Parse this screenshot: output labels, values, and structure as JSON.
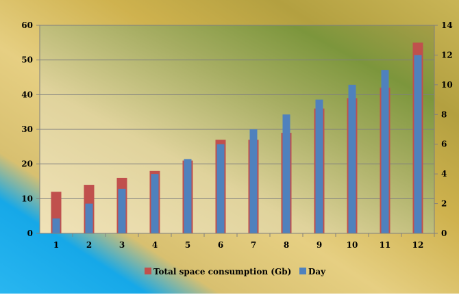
{
  "chart_data": {
    "type": "bar",
    "title": "",
    "xlabel": "",
    "ylabel": "",
    "categories": [
      "1",
      "2",
      "3",
      "4",
      "5",
      "6",
      "7",
      "8",
      "9",
      "10",
      "11",
      "12"
    ],
    "series": [
      {
        "name": "Total space consumption (Gb)",
        "axis": "left",
        "color": "#c0504d",
        "values": [
          12,
          14,
          16,
          18,
          21,
          27,
          27,
          29,
          36,
          39,
          42,
          55
        ]
      },
      {
        "name": "Day",
        "axis": "right",
        "color": "#4f81bd",
        "values": [
          1,
          2,
          3,
          4,
          5,
          6,
          7,
          8,
          9,
          10,
          11,
          12
        ]
      }
    ],
    "y_left": {
      "min": 0,
      "max": 60,
      "step": 10,
      "ticks": [
        "0",
        "10",
        "20",
        "30",
        "40",
        "50",
        "60"
      ]
    },
    "y_right": {
      "min": 0,
      "max": 14,
      "step": 2,
      "ticks": [
        "0",
        "2",
        "4",
        "6",
        "8",
        "10",
        "12",
        "14"
      ]
    },
    "grid": true,
    "legend": "bottom"
  }
}
